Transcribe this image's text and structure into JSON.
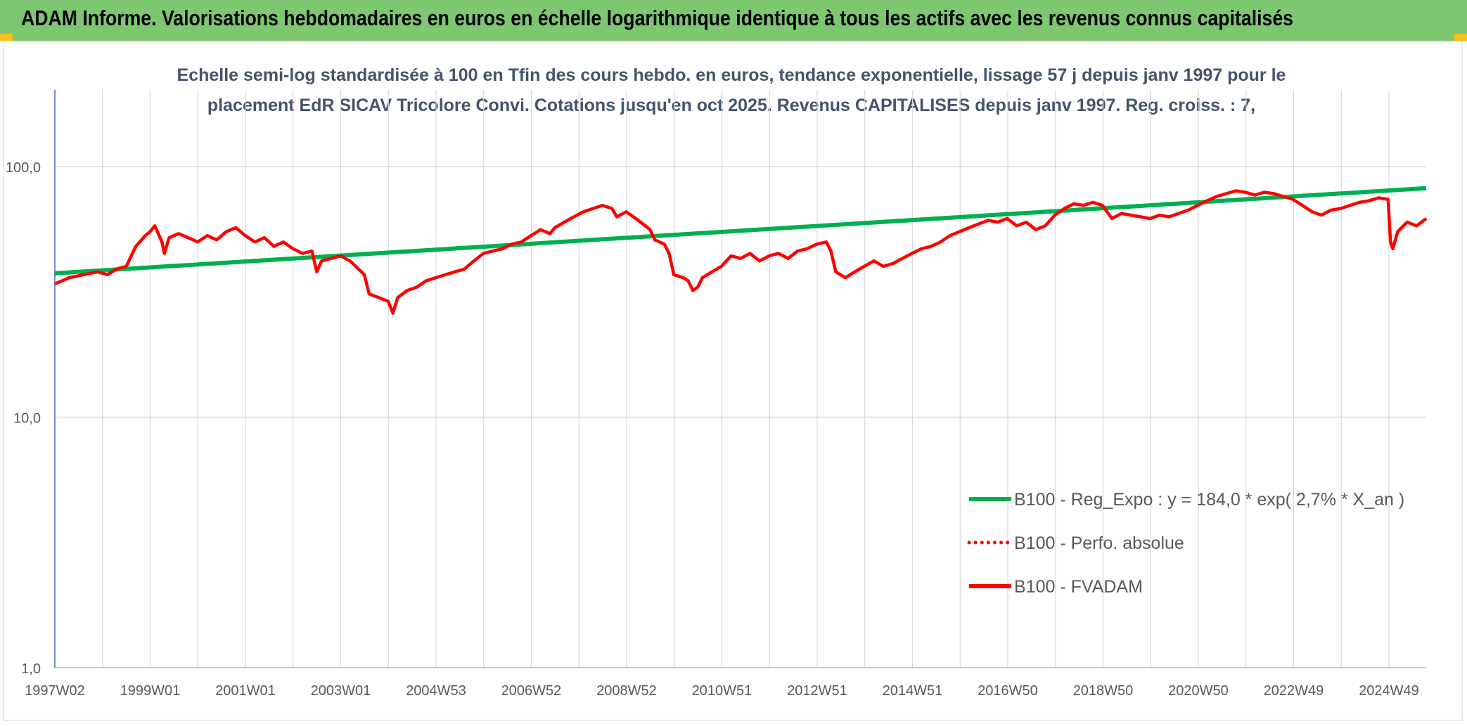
{
  "header": {
    "title": "ADAM Informe. Valorisations hebdomadaires en euros en échelle logarithmique identique à tous les actifs avec les revenus connus capitalisés"
  },
  "chart_data": {
    "type": "line",
    "title_line1": "Echelle semi-log standardisée à 100 en Tfin des cours hebdo. en euros, tendance exponentielle, lissage 57 j depuis janv 1997 pour le",
    "title_line2": "placement EdR SICAV Tricolore Convi. Cotations jusqu'en oct 2025. Revenus CAPITALISES depuis janv 1997. Reg. croiss. : 7,",
    "y_scale": "log",
    "ylim": [
      1,
      100
    ],
    "y_ticks": [
      "1,0",
      "10,0",
      "100,0"
    ],
    "x_tick_labels": [
      "1997W02",
      "1999W01",
      "2001W01",
      "2003W01",
      "2004W53",
      "2006W52",
      "2008W52",
      "2010W51",
      "2012W51",
      "2014W51",
      "2016W50",
      "2018W50",
      "2020W50",
      "2022W49",
      "2024W49"
    ],
    "xlim": [
      1997.0,
      2025.8
    ],
    "grid": true,
    "legend_position": "bottom-right",
    "legend": [
      {
        "label": "B100 - Reg_Expo : y = 184,0 * exp( 2,7% *  X_an )",
        "color": "#00b050",
        "style": "solid"
      },
      {
        "label": "B100 - Perfo. absolue",
        "color": "#ff0000",
        "style": "dotted"
      },
      {
        "label": "B100 - FVADAM",
        "color": "#ff0000",
        "style": "solid"
      }
    ],
    "series": [
      {
        "name": "B100 - Reg_Expo",
        "color": "#00b050",
        "points": [
          [
            1997.0,
            37.5
          ],
          [
            2025.8,
            82.0
          ]
        ]
      },
      {
        "name": "B100 - FVADAM",
        "color": "#ff0000",
        "points": [
          [
            1997.0,
            34
          ],
          [
            1997.3,
            36
          ],
          [
            1997.6,
            37
          ],
          [
            1997.9,
            38
          ],
          [
            1998.1,
            37
          ],
          [
            1998.3,
            39
          ],
          [
            1998.5,
            40
          ],
          [
            1998.7,
            48
          ],
          [
            1998.9,
            53
          ],
          [
            1999.0,
            55
          ],
          [
            1999.1,
            58
          ],
          [
            1999.25,
            50
          ],
          [
            1999.3,
            45
          ],
          [
            1999.4,
            52
          ],
          [
            1999.6,
            54
          ],
          [
            1999.8,
            52
          ],
          [
            2000.0,
            50
          ],
          [
            2000.2,
            53
          ],
          [
            2000.4,
            51
          ],
          [
            2000.6,
            55
          ],
          [
            2000.8,
            57
          ],
          [
            2001.0,
            53
          ],
          [
            2001.2,
            50
          ],
          [
            2001.4,
            52
          ],
          [
            2001.6,
            48
          ],
          [
            2001.8,
            50
          ],
          [
            2002.0,
            47
          ],
          [
            2002.2,
            45
          ],
          [
            2002.4,
            46
          ],
          [
            2002.5,
            38
          ],
          [
            2002.6,
            42
          ],
          [
            2002.8,
            43
          ],
          [
            2003.0,
            44
          ],
          [
            2003.2,
            42
          ],
          [
            2003.5,
            37
          ],
          [
            2003.6,
            31
          ],
          [
            2003.8,
            30
          ],
          [
            2004.0,
            29
          ],
          [
            2004.1,
            26
          ],
          [
            2004.2,
            30
          ],
          [
            2004.4,
            32
          ],
          [
            2004.6,
            33
          ],
          [
            2004.8,
            35
          ],
          [
            2005.0,
            36
          ],
          [
            2005.2,
            37
          ],
          [
            2005.4,
            38
          ],
          [
            2005.6,
            39
          ],
          [
            2005.8,
            42
          ],
          [
            2006.0,
            45
          ],
          [
            2006.2,
            46
          ],
          [
            2006.4,
            47
          ],
          [
            2006.6,
            49
          ],
          [
            2006.8,
            50
          ],
          [
            2007.0,
            53
          ],
          [
            2007.2,
            56
          ],
          [
            2007.4,
            54
          ],
          [
            2007.5,
            57
          ],
          [
            2007.7,
            60
          ],
          [
            2007.9,
            63
          ],
          [
            2008.1,
            66
          ],
          [
            2008.3,
            68
          ],
          [
            2008.5,
            70
          ],
          [
            2008.7,
            68
          ],
          [
            2008.8,
            63
          ],
          [
            2009.0,
            66
          ],
          [
            2009.2,
            62
          ],
          [
            2009.4,
            58
          ],
          [
            2009.5,
            56
          ],
          [
            2009.6,
            51
          ],
          [
            2009.8,
            49
          ],
          [
            2009.9,
            45
          ],
          [
            2010.0,
            37
          ],
          [
            2010.2,
            36
          ],
          [
            2010.3,
            35
          ],
          [
            2010.4,
            32
          ],
          [
            2010.5,
            33
          ],
          [
            2010.6,
            36
          ],
          [
            2010.8,
            38
          ],
          [
            2011.0,
            40
          ],
          [
            2011.2,
            44
          ],
          [
            2011.4,
            43
          ],
          [
            2011.6,
            45
          ],
          [
            2011.8,
            42
          ],
          [
            2012.0,
            44
          ],
          [
            2012.2,
            45
          ],
          [
            2012.4,
            43
          ],
          [
            2012.6,
            46
          ],
          [
            2012.8,
            47
          ],
          [
            2013.0,
            49
          ],
          [
            2013.2,
            50
          ],
          [
            2013.3,
            46
          ],
          [
            2013.4,
            38
          ],
          [
            2013.6,
            36
          ],
          [
            2013.8,
            38
          ],
          [
            2014.0,
            40
          ],
          [
            2014.2,
            42
          ],
          [
            2014.4,
            40
          ],
          [
            2014.6,
            41
          ],
          [
            2014.8,
            43
          ],
          [
            2015.0,
            45
          ],
          [
            2015.2,
            47
          ],
          [
            2015.4,
            48
          ],
          [
            2015.6,
            50
          ],
          [
            2015.8,
            53
          ],
          [
            2016.0,
            55
          ],
          [
            2016.2,
            57
          ],
          [
            2016.4,
            59
          ],
          [
            2016.6,
            61
          ],
          [
            2016.8,
            60
          ],
          [
            2017.0,
            62
          ],
          [
            2017.2,
            58
          ],
          [
            2017.4,
            60
          ],
          [
            2017.6,
            56
          ],
          [
            2017.8,
            58
          ],
          [
            2018.0,
            64
          ],
          [
            2018.2,
            68
          ],
          [
            2018.4,
            71
          ],
          [
            2018.6,
            70
          ],
          [
            2018.8,
            72
          ],
          [
            2019.0,
            70
          ],
          [
            2019.2,
            62
          ],
          [
            2019.4,
            65
          ],
          [
            2019.6,
            64
          ],
          [
            2019.8,
            63
          ],
          [
            2020.0,
            62
          ],
          [
            2020.2,
            64
          ],
          [
            2020.4,
            63
          ],
          [
            2020.6,
            65
          ],
          [
            2020.8,
            67
          ],
          [
            2021.0,
            70
          ],
          [
            2021.2,
            73
          ],
          [
            2021.4,
            76
          ],
          [
            2021.6,
            78
          ],
          [
            2021.8,
            80
          ],
          [
            2022.0,
            79
          ],
          [
            2022.2,
            77
          ],
          [
            2022.4,
            79
          ],
          [
            2022.6,
            78
          ],
          [
            2022.8,
            76
          ],
          [
            2023.0,
            74
          ],
          [
            2023.2,
            70
          ],
          [
            2023.4,
            66
          ],
          [
            2023.6,
            64
          ],
          [
            2023.8,
            67
          ],
          [
            2024.0,
            68
          ],
          [
            2024.2,
            70
          ],
          [
            2024.4,
            72
          ],
          [
            2024.6,
            73
          ],
          [
            2024.8,
            75
          ],
          [
            2025.0,
            74
          ],
          [
            2025.05,
            50
          ],
          [
            2025.1,
            47
          ],
          [
            2025.2,
            55
          ],
          [
            2025.4,
            60
          ],
          [
            2025.6,
            58
          ],
          [
            2025.8,
            62
          ]
        ]
      }
    ]
  }
}
